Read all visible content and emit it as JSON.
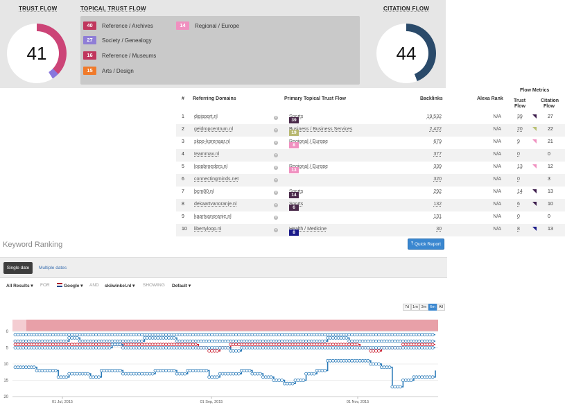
{
  "trust_flow": {
    "title": "TRUST FLOW",
    "value": "41",
    "fraction": 0.41,
    "color": "#cc4477",
    "secondary_color": "#8877dd"
  },
  "topical": {
    "title": "TOPICAL TRUST FLOW",
    "items": [
      {
        "value": "40",
        "label": "Reference / Archives",
        "color": "#c0365d"
      },
      {
        "value": "27",
        "label": "Society / Genealogy",
        "color": "#8f7ed6"
      },
      {
        "value": "16",
        "label": "Reference / Museums",
        "color": "#c0365d"
      },
      {
        "value": "15",
        "label": "Arts / Design",
        "color": "#f07a2a"
      },
      {
        "value": "14",
        "label": "Regional / Europe",
        "color": "#f090c0"
      }
    ]
  },
  "citation_flow": {
    "title": "CITATION FLOW",
    "value": "44",
    "fraction": 0.44,
    "color": "#2a4a6a"
  },
  "table": {
    "headers": {
      "num": "#",
      "domain": "Referring Domains",
      "ptf": "Primary Topical Trust Flow",
      "backlinks": "Backlinks",
      "alexa": "Alexa Rank",
      "flow_metrics": "Flow Metrics",
      "trust": "Trust",
      "trust2": "Flow",
      "citation": "Citation",
      "citation2": "Flow"
    },
    "rows": [
      {
        "n": "1",
        "domain": "digisport.nl",
        "tf_badge": "39",
        "badge_color": "#4a2a4a",
        "topic": "Sports",
        "backlinks": "19,532",
        "alexa": "N/A",
        "trust": "39",
        "citation": "27",
        "corner": "#3a1a4a"
      },
      {
        "n": "2",
        "domain": "geldropcentrum.nl",
        "tf_badge": "19",
        "badge_color": "#b8b870",
        "topic": "Business / Business Services",
        "backlinks": "2,422",
        "alexa": "N/A",
        "trust": "20",
        "citation": "22",
        "corner": "#b8c070"
      },
      {
        "n": "3",
        "domain": "skpo-korenaar.nl",
        "tf_badge": "8",
        "badge_color": "#f090c0",
        "topic": "Regional / Europe",
        "backlinks": "679",
        "alexa": "N/A",
        "trust": "9",
        "citation": "21",
        "corner": "#f090c0"
      },
      {
        "n": "4",
        "domain": "teammax.nl",
        "tf_badge": "",
        "badge_color": "",
        "topic": "",
        "backlinks": "377",
        "alexa": "N/A",
        "trust": "0",
        "citation": "0",
        "corner": ""
      },
      {
        "n": "5",
        "domain": "loopbroeders.nl",
        "tf_badge": "13",
        "badge_color": "#f090c0",
        "topic": "Regional / Europe",
        "backlinks": "339",
        "alexa": "N/A",
        "trust": "13",
        "citation": "12",
        "corner": "#f090c0"
      },
      {
        "n": "6",
        "domain": "connectingminds.net",
        "tf_badge": "",
        "badge_color": "",
        "topic": "",
        "backlinks": "320",
        "alexa": "N/A",
        "trust": "0",
        "citation": "3",
        "corner": ""
      },
      {
        "n": "7",
        "domain": "bcm80.nl",
        "tf_badge": "14",
        "badge_color": "#4a2a4a",
        "topic": "Sports",
        "backlinks": "292",
        "alexa": "N/A",
        "trust": "14",
        "citation": "13",
        "corner": "#3a1a4a"
      },
      {
        "n": "8",
        "domain": "dekaartvanoranje.nl",
        "tf_badge": "6",
        "badge_color": "#4a2a4a",
        "topic": "Sports",
        "backlinks": "132",
        "alexa": "N/A",
        "trust": "6",
        "citation": "10",
        "corner": "#3a1a4a"
      },
      {
        "n": "9",
        "domain": "kaartvanoranje.nl",
        "tf_badge": "",
        "badge_color": "",
        "topic": "",
        "backlinks": "131",
        "alexa": "N/A",
        "trust": "0",
        "citation": "0",
        "corner": ""
      },
      {
        "n": "10",
        "domain": "libertyloop.nl",
        "tf_badge": "8",
        "badge_color": "#1a1a8a",
        "topic": "Health / Medicine",
        "backlinks": "30",
        "alexa": "N/A",
        "trust": "8",
        "citation": "13",
        "corner": "#1a1a8a"
      }
    ]
  },
  "keyword": {
    "title": "Keyword Ranking",
    "quick_report": "Quick Report",
    "tab_single": "Single date",
    "tab_multiple": "Multiple dates",
    "filter": {
      "results": "All Results",
      "for": "FOR",
      "engine": "Google",
      "and": "AND",
      "site": "skiiwinkel.nl",
      "showing": "SHOWING",
      "mode": "Default"
    },
    "ranges": [
      "7d",
      "1m",
      "3m",
      "6m",
      "All"
    ],
    "active_range": "6m"
  },
  "chart_data": {
    "type": "line",
    "y_ticks": [
      "0",
      "5",
      "10",
      "15",
      "20"
    ],
    "ylim": [
      20,
      0
    ],
    "x_ticks": [
      "01 Jul, 2015",
      "01 Sep, 2015",
      "01 Nov, 2015"
    ],
    "series": [
      {
        "color": "#2a7ab8",
        "values": [
          1,
          1,
          1,
          1,
          1,
          1,
          1,
          1,
          1,
          1,
          1,
          1,
          1,
          1,
          1,
          1,
          1,
          1,
          1,
          1,
          1,
          1,
          1,
          1,
          1,
          1,
          1,
          1,
          1,
          1,
          1,
          1,
          1,
          1,
          1,
          1,
          1,
          1,
          1,
          1
        ]
      },
      {
        "color": "#2a7ab8",
        "values": [
          3,
          3,
          3,
          3,
          3,
          2,
          3,
          3,
          3,
          3,
          3,
          3,
          2,
          2,
          2,
          3,
          3,
          3,
          3,
          3,
          3,
          3,
          3,
          3,
          3,
          3,
          3,
          3,
          3,
          2,
          2,
          3,
          3,
          3,
          3,
          3,
          3,
          3,
          3,
          3
        ]
      },
      {
        "color": "#cc2233",
        "values": [
          4,
          4,
          4,
          4,
          4,
          4,
          4,
          4,
          4,
          4,
          4,
          4,
          4,
          4,
          4,
          4,
          4,
          5,
          6,
          5,
          4,
          4,
          4,
          4,
          4,
          4,
          4,
          4,
          4,
          4,
          4,
          4,
          5,
          6,
          5,
          5,
          4,
          4,
          4,
          4
        ]
      },
      {
        "color": "#2a7ab8",
        "values": [
          5,
          5,
          5,
          5,
          5,
          5,
          5,
          5,
          5,
          4,
          5,
          5,
          5,
          5,
          5,
          5,
          5,
          5,
          5,
          5,
          6,
          5,
          5,
          5,
          5,
          5,
          5,
          5,
          5,
          5,
          5,
          5,
          5,
          5,
          5,
          5,
          5,
          5,
          5,
          5
        ]
      },
      {
        "color": "#2a7ab8",
        "values": [
          11,
          11,
          12,
          12,
          14,
          13,
          13,
          14,
          12,
          12,
          13,
          13,
          13,
          12,
          12,
          13,
          12,
          12,
          14,
          13,
          13,
          12,
          13,
          14,
          15,
          16,
          15,
          13,
          12,
          9,
          9,
          9,
          9,
          10,
          11,
          17,
          15,
          14,
          14,
          12
        ]
      }
    ]
  }
}
